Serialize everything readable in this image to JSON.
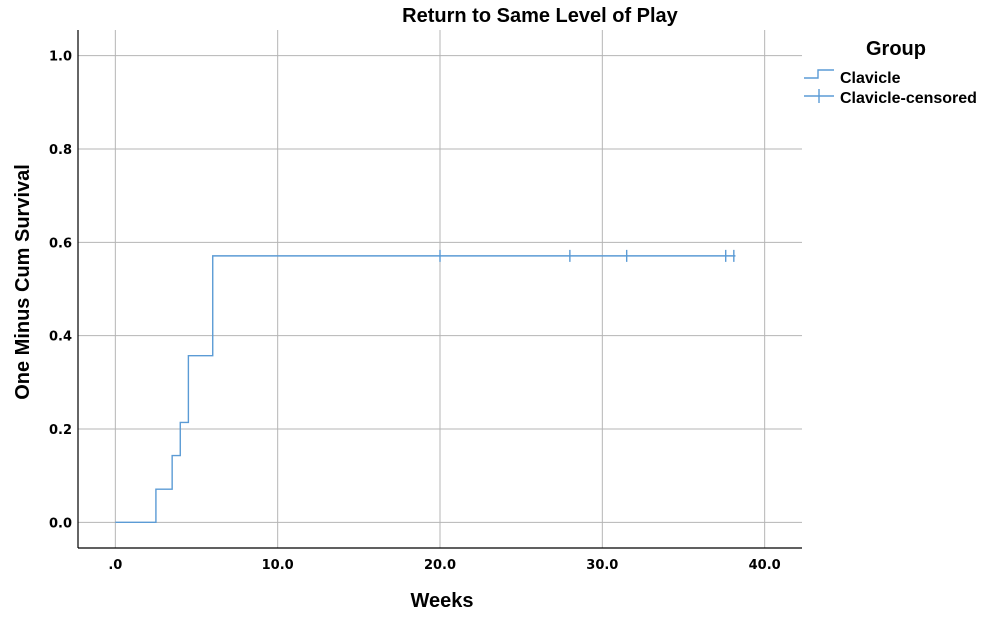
{
  "chart_data": {
    "type": "line",
    "subtype": "kaplan-meier step",
    "title": "Return to Same Level of Play",
    "xlabel": "Weeks",
    "ylabel": "One Minus Cum Survival",
    "xlim": [
      -2.3,
      42.3
    ],
    "ylim": [
      -0.055,
      1.055
    ],
    "xticks": [
      0,
      10,
      20,
      30,
      40
    ],
    "xtick_labels": [
      ".0",
      "10.0",
      "20.0",
      "30.0",
      "40.0"
    ],
    "yticks": [
      0,
      0.2,
      0.4,
      0.6,
      0.8,
      1.0
    ],
    "ytick_labels": [
      "0.0",
      "0.2",
      "0.4",
      "0.6",
      "0.8",
      "1.0"
    ],
    "grid": true,
    "legend": {
      "title": "Group",
      "placement": "top-right",
      "entries": [
        "Clavicle",
        "Clavicle-censored"
      ]
    },
    "color": "#5b9bd5",
    "series": [
      {
        "name": "Clavicle",
        "steps": [
          {
            "x": 0,
            "y": 0.0
          },
          {
            "x": 2.5,
            "y": 0.071
          },
          {
            "x": 3.5,
            "y": 0.143
          },
          {
            "x": 4.0,
            "y": 0.214
          },
          {
            "x": 4.5,
            "y": 0.357
          },
          {
            "x": 6.0,
            "y": 0.571
          },
          {
            "x": 38.2,
            "y": 0.571
          }
        ]
      },
      {
        "name": "Clavicle-censored",
        "points": [
          {
            "x": 20.0,
            "y": 0.571
          },
          {
            "x": 28.0,
            "y": 0.571
          },
          {
            "x": 31.5,
            "y": 0.571
          },
          {
            "x": 37.6,
            "y": 0.571
          },
          {
            "x": 38.1,
            "y": 0.571
          }
        ]
      }
    ]
  }
}
